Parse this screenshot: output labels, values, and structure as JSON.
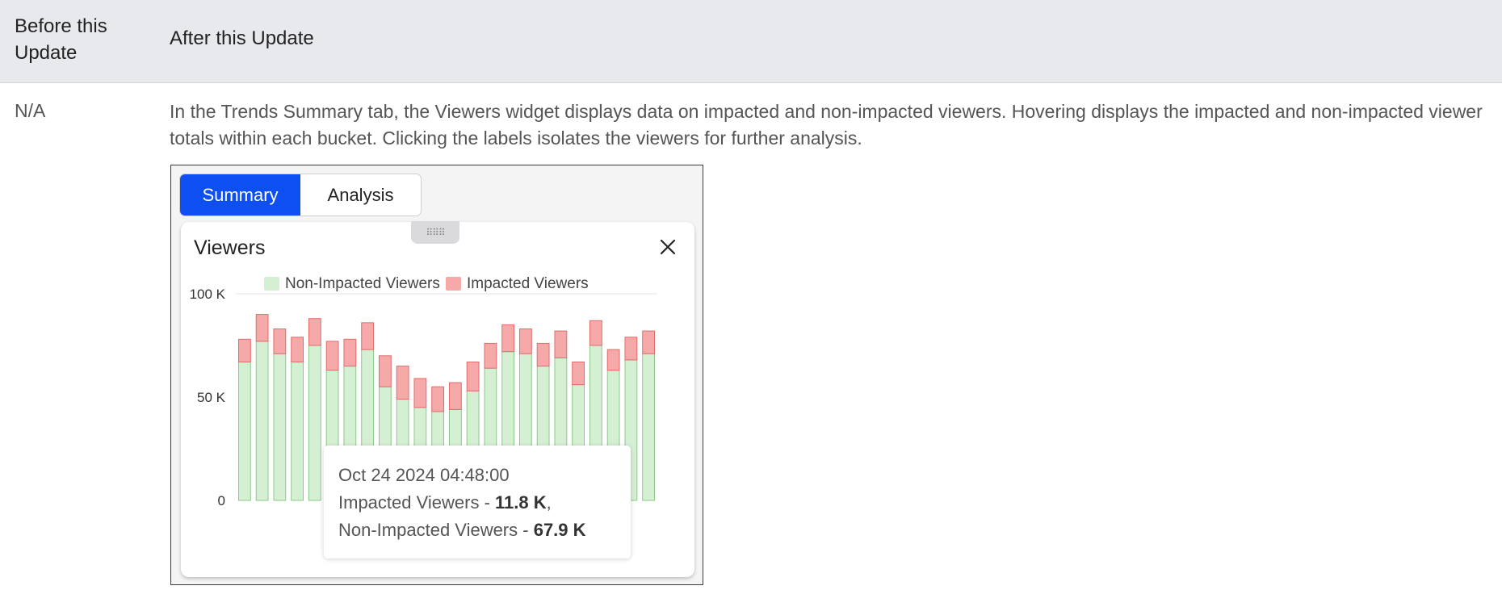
{
  "table": {
    "header_before": "Before this Update",
    "header_after": "After this Update",
    "row_before": "N/A",
    "row_after": "In the Trends Summary tab, the Viewers widget displays data on impacted and non-impacted viewers.  Hovering displays the impacted and non-impacted viewer totals within each bucket. Clicking the labels isolates the viewers for further analysis."
  },
  "screenshot": {
    "tabs": [
      {
        "label": "Summary",
        "active": true
      },
      {
        "label": "Analysis",
        "active": false
      }
    ],
    "widget": {
      "title": "Viewers",
      "close_icon": "close-icon",
      "drag_icon": "drag-handle-icon"
    },
    "tooltip": {
      "timestamp": "Oct 24 2024 04:48:00",
      "impacted_label": "Impacted Viewers - ",
      "impacted_value": "11.8 K",
      "separator": ",",
      "non_impacted_label": "Non-Impacted Viewers - ",
      "non_impacted_value": "67.9 K"
    },
    "colors": {
      "accent": "#0d4ff0",
      "non_impacted_fill": "#d5efd3",
      "non_impacted_stroke": "#8cc98a",
      "impacted_fill": "#f6a9a9",
      "impacted_stroke": "#e06c6c"
    }
  },
  "chart_data": {
    "type": "bar",
    "stacked": true,
    "ylim": [
      0,
      100000
    ],
    "yticks": [
      {
        "value": 0,
        "label": "0"
      },
      {
        "value": 50000,
        "label": "50 K"
      },
      {
        "value": 100000,
        "label": "100 K"
      }
    ],
    "legend": "top",
    "series": [
      {
        "name": "Non-Impacted Viewers",
        "values": [
          67000,
          77000,
          71000,
          67000,
          75000,
          63000,
          65000,
          73000,
          55000,
          49000,
          45000,
          43000,
          44000,
          53000,
          64000,
          72000,
          71000,
          65000,
          69000,
          56000,
          75000,
          63000,
          68000,
          71000
        ]
      },
      {
        "name": "Impacted Viewers",
        "values": [
          11000,
          13000,
          12000,
          12000,
          13000,
          14000,
          13000,
          13000,
          15000,
          16000,
          14000,
          12000,
          13000,
          14000,
          12000,
          13000,
          12000,
          11000,
          13000,
          11000,
          12000,
          10000,
          11000,
          11000
        ]
      }
    ]
  }
}
